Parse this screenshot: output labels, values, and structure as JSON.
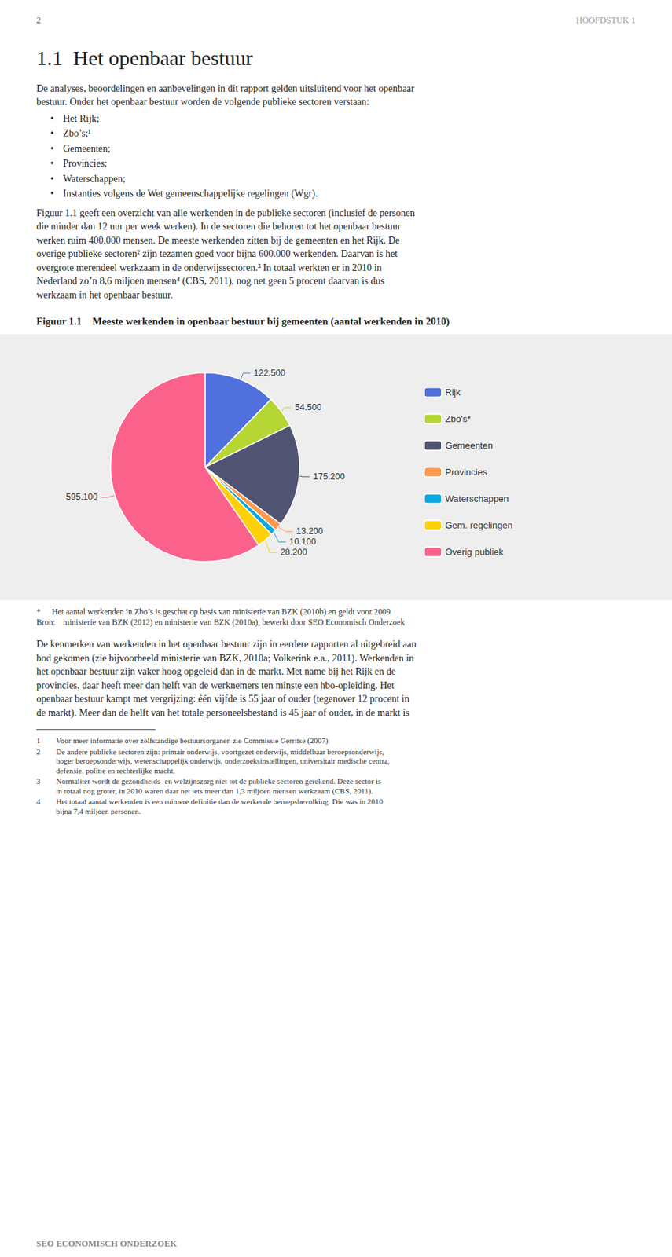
{
  "chart_data": {
    "type": "pie",
    "title": "Meeste werkenden in openbaar bestuur bij gemeenten (aantal werkenden in 2010)",
    "categories": [
      "Rijk",
      "Zbo's*",
      "Gemeenten",
      "Provincies",
      "Waterschappen",
      "Gem. regelingen",
      "Overig publiek"
    ],
    "values": [
      122500,
      54500,
      175200,
      13200,
      10100,
      28200,
      595100
    ],
    "value_labels": [
      "122.500",
      "54.500",
      "175.200",
      "13.200",
      "10.100",
      "28.200",
      "595.100"
    ],
    "data_labels": true,
    "legend": "right",
    "annotations": [
      [
        "2",
        "HOOFDSTUK 1"
      ],
      [
        "1.1  Het openbaar bestuur"
      ],
      [
        "De analyses, beoordelingen en aanbevelingen in dit rapport gelden uitsluitend voor het openbaar"
      ],
      [
        "bestuur. Onder het openbaar bestuur worden de volgende publieke sectoren verstaan:"
      ],
      [
        "•",
        "Het Rijk;"
      ],
      [
        "•",
        "Zbo’s;¹"
      ],
      [
        "•",
        "Gemeenten;"
      ],
      [
        "•",
        "Provincies;"
      ],
      [
        "•",
        "Waterschappen;"
      ],
      [
        "•",
        "Instanties volgens de Wet gemeenschappelijke regelingen (Wgr)."
      ],
      [
        "Figuur 1.1 geeft een overzicht van alle werkenden in de publieke sectoren (inclusief de personen"
      ],
      [
        "die minder dan 12 uur per week werken). In de sectoren die behoren tot het openbaar bestuur"
      ],
      [
        "werken ruim 400.000 mensen. De meeste werkenden zitten bij de gemeenten en het Rijk. De"
      ],
      [
        "overige publieke sectoren² zijn tezamen goed voor bijna 600.000 werkenden. Daarvan is het"
      ],
      [
        "overgrote merendeel werkzaam in de onderwijssectoren.³ In totaal werkten er in 2010 in"
      ],
      [
        "Nederland zo’n 8,6 miljoen mensen⁴ (CBS, 2011), nog net geen 5 procent daarvan is dus"
      ],
      [
        "werkzaam in het openbaar bestuur."
      ],
      [
        "Figuur 1.1"
      ],
      [
        "*",
        "Het aantal werkenden in Zbo’s is geschat op basis van ministerie van BZK (2010b) en geldt voor 2009"
      ],
      [
        "Bron:",
        "ministerie van BZK (2012) en ministerie van BZK (2010a), bewerkt door SEO Economisch Onderzoek"
      ],
      [
        "De kenmerken van werkenden in het openbaar bestuur zijn in eerdere rapporten al uitgebreid aan"
      ],
      [
        "bod gekomen (zie bijvoorbeeld ministerie van BZK, 2010a; Volkerink e.a., 2011). Werkenden in"
      ],
      [
        "het openbaar bestuur zijn vaker hoog opgeleid dan in de markt. Met name bij het Rijk en de"
      ],
      [
        "provincies, daar heeft meer dan helft van de werknemers ten minste een hbo-opleiding. Het"
      ],
      [
        "openbaar bestuur kampt met vergrijzing: één vijfde is 55 jaar of ouder (tegenover 12 procent in"
      ],
      [
        "de markt). Meer dan de helft van het totale personeelsbestand is 45 jaar of ouder, in de markt is"
      ],
      [
        "1",
        "Voor meer informatie over zelfstandige bestuursorganen zie Commissie Gerritse (2007)"
      ],
      [
        "2",
        "De andere publieke sectoren zijn: primair onderwijs, voortgezet onderwijs, middelbaar beroepsonderwijs,"
      ],
      [
        "hoger beroepsonderwijs, wetenschappelijk onderwijs, onderzoeksinstellingen, universitair medische centra,"
      ],
      [
        "defensie, politie en rechterlijke macht."
      ],
      [
        "3",
        "Normaliter wordt de gezondheids- en welzijnszorg niet tot de publieke sectoren gerekend. Deze sector is"
      ],
      [
        "in totaal nog groter, in 2010 waren daar net iets meer dan 1,3 miljoen mensen werkzaam (CBS, 2011)."
      ],
      [
        "4",
        "Het totaal aantal werkenden is een ruimere definitie dan de werkende beroepsbevolking. Die was in 2010"
      ],
      [
        "bijna 7,4 miljoen personen."
      ],
      [
        "SEO ECONOMISCH ONDERZOEK"
      ]
    ]
  }
}
